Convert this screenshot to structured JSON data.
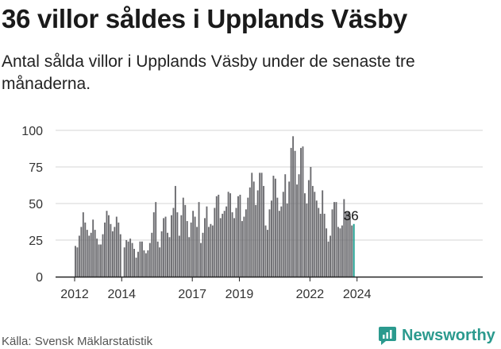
{
  "title": "36 villor såldes i Upplands Väsby",
  "subtitle": "Antal sålda villor i Upplands Väsby under de senaste tre månaderna.",
  "source": "Källa: Svensk Mäklarstatistik",
  "brand": "Newsworthy",
  "colors": {
    "bar": "#6b6b6f",
    "highlight": "#1a9e8f",
    "brand": "#2b9a8e",
    "grid": "#d4d4d4",
    "axis": "#222222"
  },
  "chart_data": {
    "type": "bar",
    "title": "36 villor såldes i Upplands Väsby",
    "xlabel": "",
    "ylabel": "",
    "ylim": [
      0,
      100
    ],
    "yticks": [
      0,
      25,
      50,
      75,
      100
    ],
    "xticks": [
      "2012",
      "2014",
      "2017",
      "2019",
      "2022",
      "2024"
    ],
    "start": "2012-01",
    "end": "2024-03",
    "highlight_label": "36",
    "values": [
      21,
      20,
      28,
      34,
      44,
      37,
      32,
      28,
      30,
      39,
      32,
      26,
      22,
      22,
      29,
      37,
      45,
      42,
      36,
      31,
      34,
      41,
      37,
      29,
      0,
      20,
      25,
      24,
      26,
      23,
      19,
      13,
      17,
      24,
      24,
      18,
      16,
      18,
      23,
      30,
      44,
      51,
      24,
      20,
      31,
      40,
      41,
      30,
      27,
      42,
      47,
      62,
      44,
      28,
      42,
      54,
      49,
      38,
      27,
      37,
      45,
      41,
      34,
      51,
      23,
      30,
      40,
      48,
      34,
      36,
      35,
      47,
      55,
      56,
      40,
      43,
      45,
      48,
      58,
      57,
      44,
      40,
      47,
      55,
      56,
      38,
      41,
      46,
      54,
      61,
      71,
      65,
      49,
      59,
      71,
      71,
      62,
      35,
      32,
      46,
      52,
      69,
      67,
      54,
      45,
      48,
      58,
      70,
      50,
      65,
      88,
      96,
      86,
      63,
      70,
      88,
      89,
      57,
      50,
      66,
      75,
      62,
      58,
      52,
      47,
      43,
      59,
      43,
      33,
      24,
      28,
      46,
      51,
      51,
      34,
      33,
      35,
      53,
      44,
      44,
      43,
      35,
      36
    ]
  }
}
